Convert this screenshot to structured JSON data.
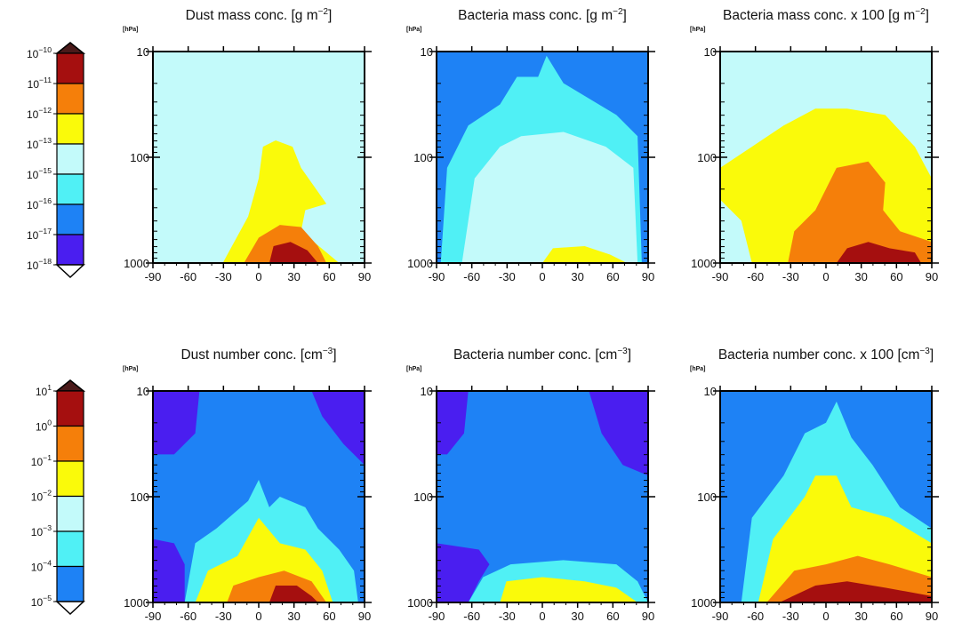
{
  "chart_data": [
    {
      "type": "heatmap",
      "title": "Dust mass conc. [g m",
      "title_unit_exponent": "−2",
      "title_close": "]",
      "y_unit": "[hPa]",
      "x_ticks": [
        "-90",
        "-60",
        "-30",
        "0",
        "30",
        "60",
        "90"
      ],
      "y_ticks": [
        "10",
        "100",
        "1000"
      ],
      "xlim": [
        -90,
        90
      ],
      "ylim": [
        1000,
        10
      ],
      "y_scale": "log",
      "colorbar_levels": [
        "10−10",
        "10−11",
        "10−12",
        "10−13",
        "10−15",
        "10−16",
        "10−17",
        "10−18"
      ],
      "dominant_level_by_altitude": [
        {
          "pressure_hPa": 10,
          "level": "10−15 to 10−13"
        },
        {
          "pressure_hPa": 300,
          "level": "10−13 to 10−12 near 0–50"
        },
        {
          "pressure_hPa": 900,
          "level": "10−11 to 10−10 near 10–40"
        }
      ]
    },
    {
      "type": "heatmap",
      "title": "Bacteria mass conc. [g m",
      "title_unit_exponent": "−2",
      "title_close": "]",
      "y_unit": "[hPa]",
      "x_ticks": [
        "-90",
        "-60",
        "-30",
        "0",
        "30",
        "60",
        "90"
      ],
      "y_ticks": [
        "10",
        "100",
        "1000"
      ],
      "xlim": [
        -90,
        90
      ],
      "ylim": [
        1000,
        10
      ],
      "y_scale": "log"
    },
    {
      "type": "heatmap",
      "title": "Bacteria mass conc. x 100 [g m",
      "title_unit_exponent": "−2",
      "title_close": "]",
      "y_unit": "[hPa]",
      "x_ticks": [
        "-90",
        "-60",
        "-30",
        "0",
        "30",
        "60",
        "90"
      ],
      "y_ticks": [
        "10",
        "100",
        "1000"
      ],
      "xlim": [
        -90,
        90
      ],
      "ylim": [
        1000,
        10
      ],
      "y_scale": "log"
    },
    {
      "type": "heatmap",
      "title": "Dust number conc. [cm",
      "title_unit_exponent": "−3",
      "title_close": "]",
      "y_unit": "[hPa]",
      "x_ticks": [
        "-90",
        "-60",
        "-30",
        "0",
        "30",
        "60",
        "90"
      ],
      "y_ticks": [
        "10",
        "100",
        "1000"
      ],
      "xlim": [
        -90,
        90
      ],
      "ylim": [
        1000,
        10
      ],
      "y_scale": "log",
      "colorbar_levels": [
        "10",
        "10",
        "10",
        "10",
        "10",
        "10",
        "10"
      ]
    },
    {
      "type": "heatmap",
      "title": "Bacteria number conc. [cm",
      "title_unit_exponent": "−3",
      "title_close": "]",
      "y_unit": "[hPa]",
      "x_ticks": [
        "-90",
        "-60",
        "-30",
        "0",
        "30",
        "60",
        "90"
      ],
      "y_ticks": [
        "10",
        "100",
        "1000"
      ],
      "xlim": [
        -90,
        90
      ],
      "ylim": [
        1000,
        10
      ],
      "y_scale": "log"
    },
    {
      "type": "heatmap",
      "title": "Bacteria number conc. x 100 [cm",
      "title_unit_exponent": "−3",
      "title_close": "]",
      "y_unit": "[hPa]",
      "x_ticks": [
        "-90",
        "-60",
        "-30",
        "0",
        "30",
        "60",
        "90"
      ],
      "y_ticks": [
        "10",
        "100",
        "1000"
      ],
      "xlim": [
        -90,
        90
      ],
      "ylim": [
        1000,
        10
      ],
      "y_scale": "log"
    }
  ],
  "colorbars": [
    {
      "labels": [
        {
          "base": "10",
          "exp": "−10"
        },
        {
          "base": "10",
          "exp": "−11"
        },
        {
          "base": "10",
          "exp": "−12"
        },
        {
          "base": "10",
          "exp": "−13"
        },
        {
          "base": "10",
          "exp": "−15"
        },
        {
          "base": "10",
          "exp": "−16"
        },
        {
          "base": "10",
          "exp": "−17"
        },
        {
          "base": "10",
          "exp": "−18"
        }
      ]
    },
    {
      "labels": [
        {
          "base": "10",
          "exp": "1"
        },
        {
          "base": "10",
          "exp": "0"
        },
        {
          "base": "10",
          "exp": "−1"
        },
        {
          "base": "10",
          "exp": "−2"
        },
        {
          "base": "10",
          "exp": "−3"
        },
        {
          "base": "10",
          "exp": "−4"
        },
        {
          "base": "10",
          "exp": "−5"
        }
      ]
    }
  ],
  "colors": {
    "top_arrow": "#4a1a1a",
    "dark_red": "#a50f0f",
    "orange": "#f57f0a",
    "yellow": "#fafa0a",
    "light_cyan": "#c3fafa",
    "cyan": "#50f0f5",
    "blue": "#1e82f5",
    "purple": "#4a1ef0",
    "white": "#ffffff"
  }
}
